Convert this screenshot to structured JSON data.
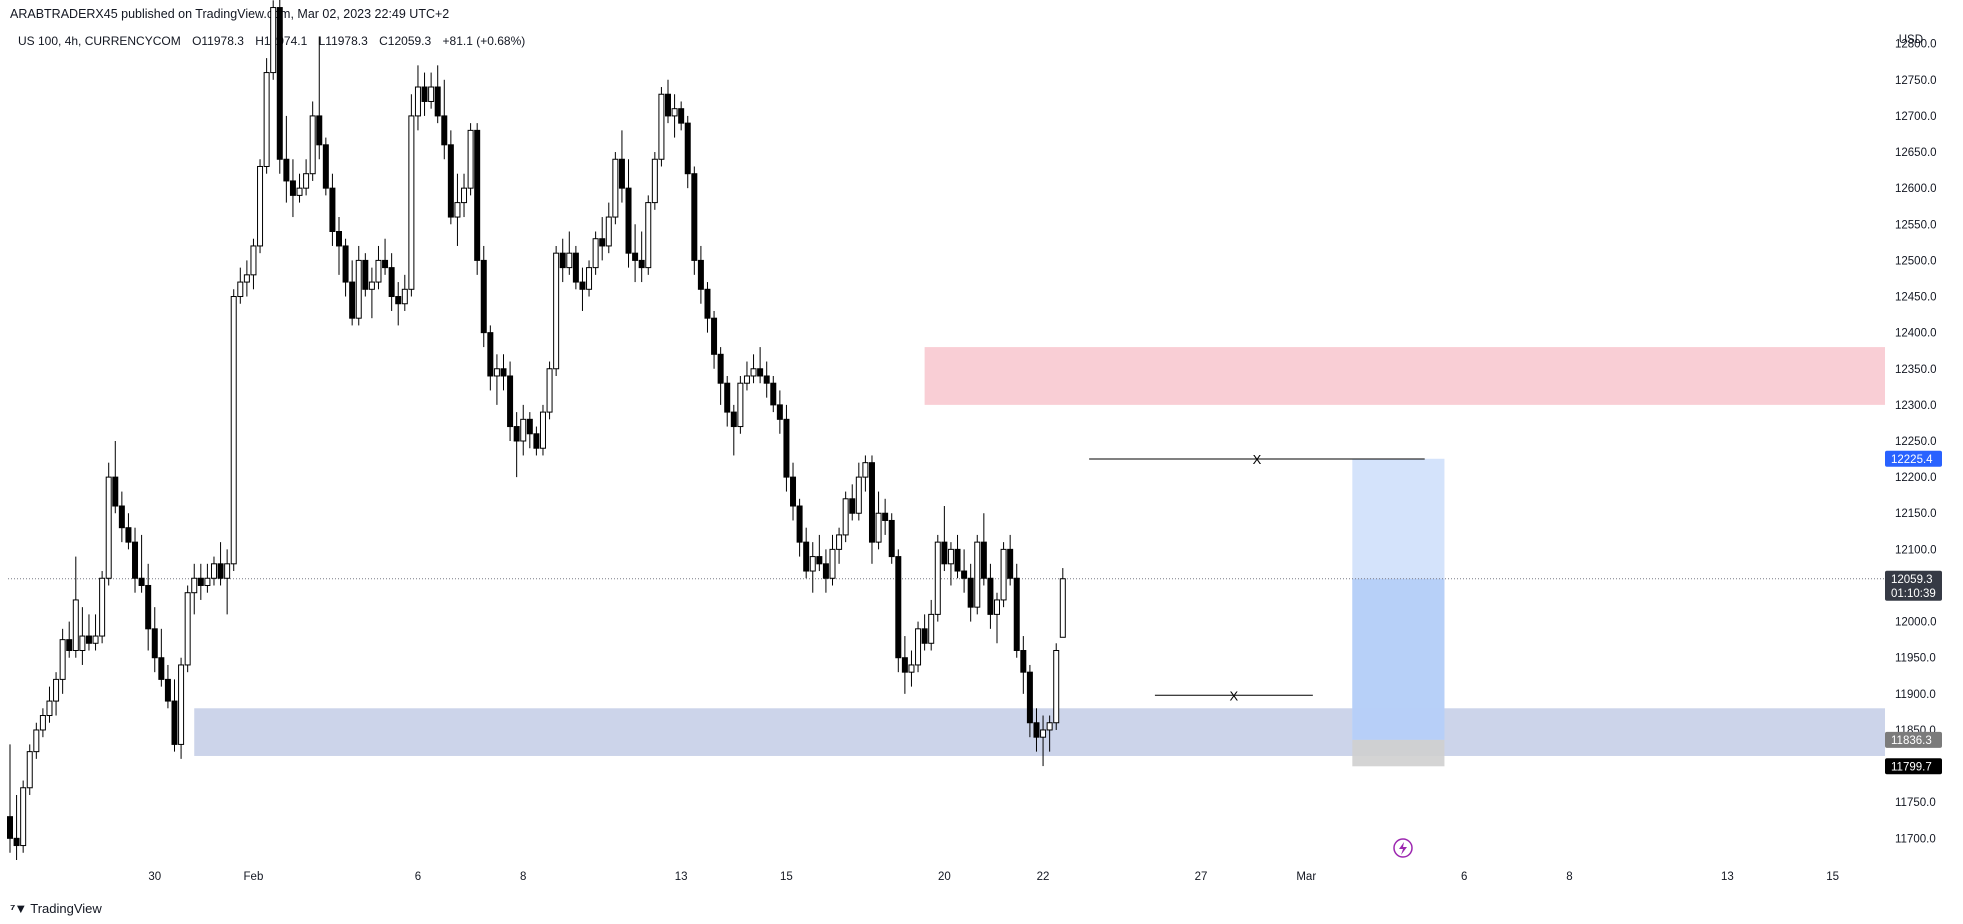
{
  "header": {
    "published": "ARABTRADERX45 published on TradingView.com, Mar 02, 2023 22:49 UTC+2"
  },
  "legend": {
    "symbol": "US 100, 4h, CURRENCYCOM",
    "open": "O11978.3",
    "high": "H12074.1",
    "low": "L11978.3",
    "close": "C12059.3",
    "change": "+81.1 (+0.68%)"
  },
  "axis": {
    "currency": "USD"
  },
  "footer": {
    "brand": "TradingView",
    "logo_icon": "tradingview-logo-icon"
  },
  "colors": {
    "bull": "#ffffff",
    "bear": "#000000",
    "supply_zone": "#f8c9d0",
    "demand_zone": "#c7cfe8",
    "target_zone": "#cfe0fb",
    "target_zone_filled": "#b4cdf7",
    "stop_zone": "#cfcfcf",
    "target_label": "#2962ff",
    "price_label": "#363a45",
    "stop_label": "#7b7b7b"
  },
  "chart_data": {
    "type": "candlestick",
    "title": "US 100, 4h, CURRENCYCOM",
    "ylabel": "USD",
    "ylim": [
      11670,
      12830
    ],
    "y_ticks": [
      "11700.0",
      "11750.0",
      "11800.0",
      "11850.0",
      "11900.0",
      "11950.0",
      "12000.0",
      "12050.0",
      "12100.0",
      "12150.0",
      "12200.0",
      "12250.0",
      "12300.0",
      "12350.0",
      "12400.0",
      "12450.0",
      "12500.0",
      "12550.0",
      "12600.0",
      "12650.0",
      "12700.0",
      "12750.0",
      "12800.0"
    ],
    "x_ticks": [
      {
        "label": "30",
        "bar": 22
      },
      {
        "label": "Feb",
        "bar": 37
      },
      {
        "label": "6",
        "bar": 62
      },
      {
        "label": "8",
        "bar": 78
      },
      {
        "label": "13",
        "bar": 102
      },
      {
        "label": "15",
        "bar": 118
      },
      {
        "label": "20",
        "bar": 142
      },
      {
        "label": "22",
        "bar": 157
      },
      {
        "label": "27",
        "bar": 181
      },
      {
        "label": "Mar",
        "bar": 197
      },
      {
        "label": "6",
        "bar": 221
      },
      {
        "label": "8",
        "bar": 237
      },
      {
        "label": "13",
        "bar": 261
      },
      {
        "label": "15",
        "bar": 277
      }
    ],
    "bar_count_view": 286,
    "last_price": "12059.3",
    "countdown": "01:10:39",
    "candles": [
      [
        11730,
        11830,
        11680,
        11700
      ],
      [
        11700,
        11760,
        11670,
        11690
      ],
      [
        11690,
        11780,
        11680,
        11770
      ],
      [
        11770,
        11830,
        11760,
        11820
      ],
      [
        11820,
        11860,
        11810,
        11850
      ],
      [
        11850,
        11880,
        11840,
        11870
      ],
      [
        11870,
        11910,
        11860,
        11890
      ],
      [
        11890,
        11930,
        11870,
        11920
      ],
      [
        11920,
        11990,
        11900,
        11975
      ],
      [
        11975,
        12000,
        11950,
        11960
      ],
      [
        11960,
        12090,
        11950,
        12030
      ],
      [
        11960,
        12020,
        11940,
        11980
      ],
      [
        11980,
        12010,
        11960,
        11970
      ],
      [
        11970,
        12010,
        11960,
        11980
      ],
      [
        11980,
        12070,
        11970,
        12060
      ],
      [
        12060,
        12220,
        12050,
        12200
      ],
      [
        12200,
        12250,
        12150,
        12160
      ],
      [
        12160,
        12180,
        12110,
        12130
      ],
      [
        12130,
        12150,
        12100,
        12110
      ],
      [
        12110,
        12130,
        12040,
        12060
      ],
      [
        12060,
        12120,
        12040,
        12050
      ],
      [
        12050,
        12080,
        11960,
        11990
      ],
      [
        11990,
        12020,
        11930,
        11950
      ],
      [
        11950,
        11990,
        11910,
        11920
      ],
      [
        11920,
        11940,
        11880,
        11890
      ],
      [
        11890,
        11920,
        11820,
        11830
      ],
      [
        11830,
        11950,
        11810,
        11940
      ],
      [
        11940,
        12050,
        11930,
        12040
      ],
      [
        12040,
        12080,
        12010,
        12060
      ],
      [
        12060,
        12080,
        12030,
        12050
      ],
      [
        12050,
        12080,
        12040,
        12060
      ],
      [
        12060,
        12090,
        12050,
        12080
      ],
      [
        12080,
        12110,
        12050,
        12060
      ],
      [
        12060,
        12100,
        12010,
        12080
      ],
      [
        12080,
        12460,
        12070,
        12450
      ],
      [
        12450,
        12490,
        12440,
        12470
      ],
      [
        12470,
        12500,
        12450,
        12480
      ],
      [
        12480,
        12530,
        12460,
        12520
      ],
      [
        12520,
        12640,
        12510,
        12630
      ],
      [
        12630,
        12780,
        12620,
        12760
      ],
      [
        12760,
        12860,
        12750,
        12850
      ],
      [
        12850,
        12870,
        12620,
        12640
      ],
      [
        12640,
        12700,
        12580,
        12610
      ],
      [
        12610,
        12640,
        12560,
        12590
      ],
      [
        12590,
        12620,
        12580,
        12600
      ],
      [
        12600,
        12640,
        12590,
        12620
      ],
      [
        12620,
        12720,
        12610,
        12700
      ],
      [
        12700,
        12810,
        12640,
        12660
      ],
      [
        12660,
        12670,
        12590,
        12600
      ],
      [
        12600,
        12620,
        12520,
        12540
      ],
      [
        12540,
        12560,
        12480,
        12520
      ],
      [
        12520,
        12530,
        12450,
        12470
      ],
      [
        12470,
        12500,
        12410,
        12420
      ],
      [
        12420,
        12520,
        12410,
        12500
      ],
      [
        12500,
        12510,
        12450,
        12460
      ],
      [
        12460,
        12490,
        12420,
        12470
      ],
      [
        12470,
        12520,
        12460,
        12500
      ],
      [
        12500,
        12530,
        12480,
        12490
      ],
      [
        12490,
        12510,
        12430,
        12450
      ],
      [
        12450,
        12470,
        12410,
        12440
      ],
      [
        12440,
        12480,
        12430,
        12460
      ],
      [
        12460,
        12730,
        12450,
        12700
      ],
      [
        12700,
        12770,
        12680,
        12740
      ],
      [
        12740,
        12760,
        12700,
        12720
      ],
      [
        12720,
        12760,
        12710,
        12740
      ],
      [
        12740,
        12770,
        12690,
        12700
      ],
      [
        12700,
        12750,
        12640,
        12660
      ],
      [
        12660,
        12680,
        12550,
        12560
      ],
      [
        12560,
        12620,
        12520,
        12580
      ],
      [
        12580,
        12620,
        12560,
        12600
      ],
      [
        12600,
        12690,
        12590,
        12680
      ],
      [
        12680,
        12690,
        12480,
        12500
      ],
      [
        12500,
        12520,
        12380,
        12400
      ],
      [
        12400,
        12410,
        12320,
        12340
      ],
      [
        12340,
        12370,
        12300,
        12350
      ],
      [
        12350,
        12370,
        12320,
        12340
      ],
      [
        12340,
        12360,
        12250,
        12270
      ],
      [
        12270,
        12290,
        12200,
        12250
      ],
      [
        12250,
        12300,
        12230,
        12280
      ],
      [
        12280,
        12290,
        12240,
        12260
      ],
      [
        12260,
        12270,
        12230,
        12240
      ],
      [
        12240,
        12300,
        12230,
        12290
      ],
      [
        12290,
        12360,
        12280,
        12350
      ],
      [
        12350,
        12520,
        12340,
        12510
      ],
      [
        12510,
        12530,
        12470,
        12490
      ],
      [
        12490,
        12540,
        12480,
        12510
      ],
      [
        12510,
        12520,
        12460,
        12470
      ],
      [
        12470,
        12490,
        12430,
        12460
      ],
      [
        12460,
        12500,
        12450,
        12490
      ],
      [
        12490,
        12540,
        12480,
        12530
      ],
      [
        12530,
        12560,
        12500,
        12520
      ],
      [
        12520,
        12580,
        12510,
        12560
      ],
      [
        12560,
        12650,
        12550,
        12640
      ],
      [
        12640,
        12680,
        12580,
        12600
      ],
      [
        12600,
        12640,
        12490,
        12510
      ],
      [
        12510,
        12550,
        12470,
        12500
      ],
      [
        12500,
        12540,
        12470,
        12490
      ],
      [
        12490,
        12590,
        12480,
        12580
      ],
      [
        12580,
        12650,
        12570,
        12640
      ],
      [
        12640,
        12740,
        12630,
        12730
      ],
      [
        12730,
        12750,
        12690,
        12700
      ],
      [
        12700,
        12730,
        12670,
        12710
      ],
      [
        12710,
        12720,
        12680,
        12690
      ],
      [
        12690,
        12700,
        12600,
        12620
      ],
      [
        12620,
        12630,
        12480,
        12500
      ],
      [
        12500,
        12520,
        12440,
        12460
      ],
      [
        12460,
        12470,
        12400,
        12420
      ],
      [
        12420,
        12430,
        12350,
        12370
      ],
      [
        12370,
        12380,
        12300,
        12330
      ],
      [
        12330,
        12340,
        12270,
        12290
      ],
      [
        12290,
        12300,
        12230,
        12270
      ],
      [
        12270,
        12340,
        12260,
        12330
      ],
      [
        12330,
        12360,
        12320,
        12340
      ],
      [
        12340,
        12370,
        12330,
        12350
      ],
      [
        12350,
        12380,
        12330,
        12340
      ],
      [
        12340,
        12360,
        12310,
        12330
      ],
      [
        12330,
        12340,
        12290,
        12300
      ],
      [
        12300,
        12320,
        12260,
        12280
      ],
      [
        12280,
        12300,
        12180,
        12200
      ],
      [
        12200,
        12220,
        12140,
        12160
      ],
      [
        12160,
        12170,
        12090,
        12110
      ],
      [
        12110,
        12130,
        12060,
        12070
      ],
      [
        12070,
        12110,
        12040,
        12090
      ],
      [
        12090,
        12120,
        12070,
        12080
      ],
      [
        12080,
        12100,
        12040,
        12060
      ],
      [
        12060,
        12120,
        12050,
        12100
      ],
      [
        12100,
        12130,
        12080,
        12120
      ],
      [
        12120,
        12180,
        12110,
        12170
      ],
      [
        12170,
        12190,
        12140,
        12150
      ],
      [
        12150,
        12220,
        12140,
        12200
      ],
      [
        12200,
        12230,
        12180,
        12220
      ],
      [
        12220,
        12230,
        12080,
        12110
      ],
      [
        12110,
        12180,
        12100,
        12150
      ],
      [
        12150,
        12170,
        12120,
        12140
      ],
      [
        12140,
        12150,
        12080,
        12090
      ],
      [
        12090,
        12100,
        11930,
        11950
      ],
      [
        11950,
        11980,
        11900,
        11930
      ],
      [
        11930,
        11960,
        11910,
        11940
      ],
      [
        11940,
        12000,
        11930,
        11990
      ],
      [
        11990,
        12010,
        11960,
        11970
      ],
      [
        11970,
        12030,
        11960,
        12010
      ],
      [
        12010,
        12120,
        12000,
        12110
      ],
      [
        12110,
        12160,
        12070,
        12080
      ],
      [
        12080,
        12110,
        12050,
        12100
      ],
      [
        12100,
        12120,
        12060,
        12070
      ],
      [
        12070,
        12100,
        12040,
        12060
      ],
      [
        12060,
        12080,
        12000,
        12020
      ],
      [
        12020,
        12120,
        12010,
        12110
      ],
      [
        12110,
        12150,
        12050,
        12060
      ],
      [
        12060,
        12080,
        11990,
        12010
      ],
      [
        12010,
        12040,
        11970,
        12030
      ],
      [
        12030,
        12110,
        12020,
        12100
      ],
      [
        12100,
        12120,
        12050,
        12060
      ],
      [
        12060,
        12080,
        11950,
        11960
      ],
      [
        11960,
        11980,
        11900,
        11930
      ],
      [
        11930,
        11940,
        11840,
        11860
      ],
      [
        11860,
        11880,
        11820,
        11840
      ],
      [
        11840,
        11870,
        11800,
        11850
      ],
      [
        11850,
        11870,
        11820,
        11860
      ],
      [
        11860,
        11970,
        11850,
        11960
      ],
      [
        11978.3,
        12074.1,
        11978.3,
        12059.3
      ]
    ],
    "zones": [
      {
        "name": "supply-zone",
        "from_bar": 139,
        "y_top": 12380,
        "y_bottom": 12300
      },
      {
        "name": "demand-zone",
        "from_bar": 28,
        "y_top": 11880,
        "y_bottom": 11814
      },
      {
        "name": "target-zone",
        "from_bar": 204,
        "to_bar": 218,
        "y_top": 12225.4,
        "y_bottom": 11836.3
      },
      {
        "name": "stop-zone",
        "from_bar": 204,
        "to_bar": 218,
        "y_top": 11836.3,
        "y_bottom": 11799.7
      }
    ],
    "annotations": [
      {
        "label": "X",
        "from_bar": 164,
        "to_bar": 215,
        "y": 12225
      },
      {
        "label": "X",
        "from_bar": 174,
        "to_bar": 198,
        "y": 11898
      }
    ],
    "price_labels": [
      {
        "value": "12225.4",
        "kind": "target"
      },
      {
        "value": "12059.3",
        "kind": "last"
      },
      {
        "value": "11836.3",
        "kind": "entry"
      },
      {
        "value": "11799.7",
        "kind": "stop"
      }
    ]
  }
}
